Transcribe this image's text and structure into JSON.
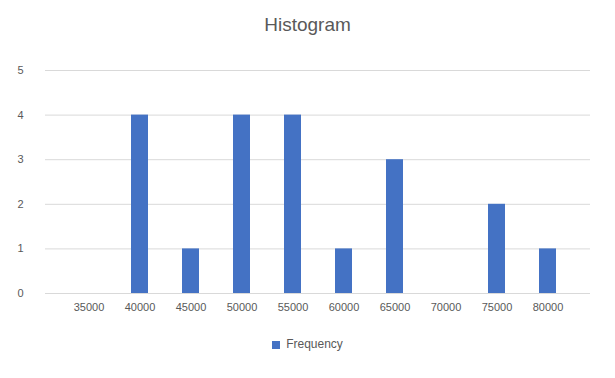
{
  "chart_data": {
    "type": "bar",
    "title": "Histogram",
    "categories": [
      "35000",
      "40000",
      "45000",
      "50000",
      "55000",
      "60000",
      "65000",
      "70000",
      "75000",
      "80000"
    ],
    "series": [
      {
        "name": "Frequency",
        "color": "#4472c4",
        "values": [
          0,
          4,
          1,
          4,
          4,
          1,
          3,
          0,
          2,
          1
        ]
      }
    ],
    "ylim": [
      0,
      5
    ],
    "yticks": [
      0,
      1,
      2,
      3,
      4,
      5
    ],
    "grid": true,
    "legend": "bottom"
  }
}
